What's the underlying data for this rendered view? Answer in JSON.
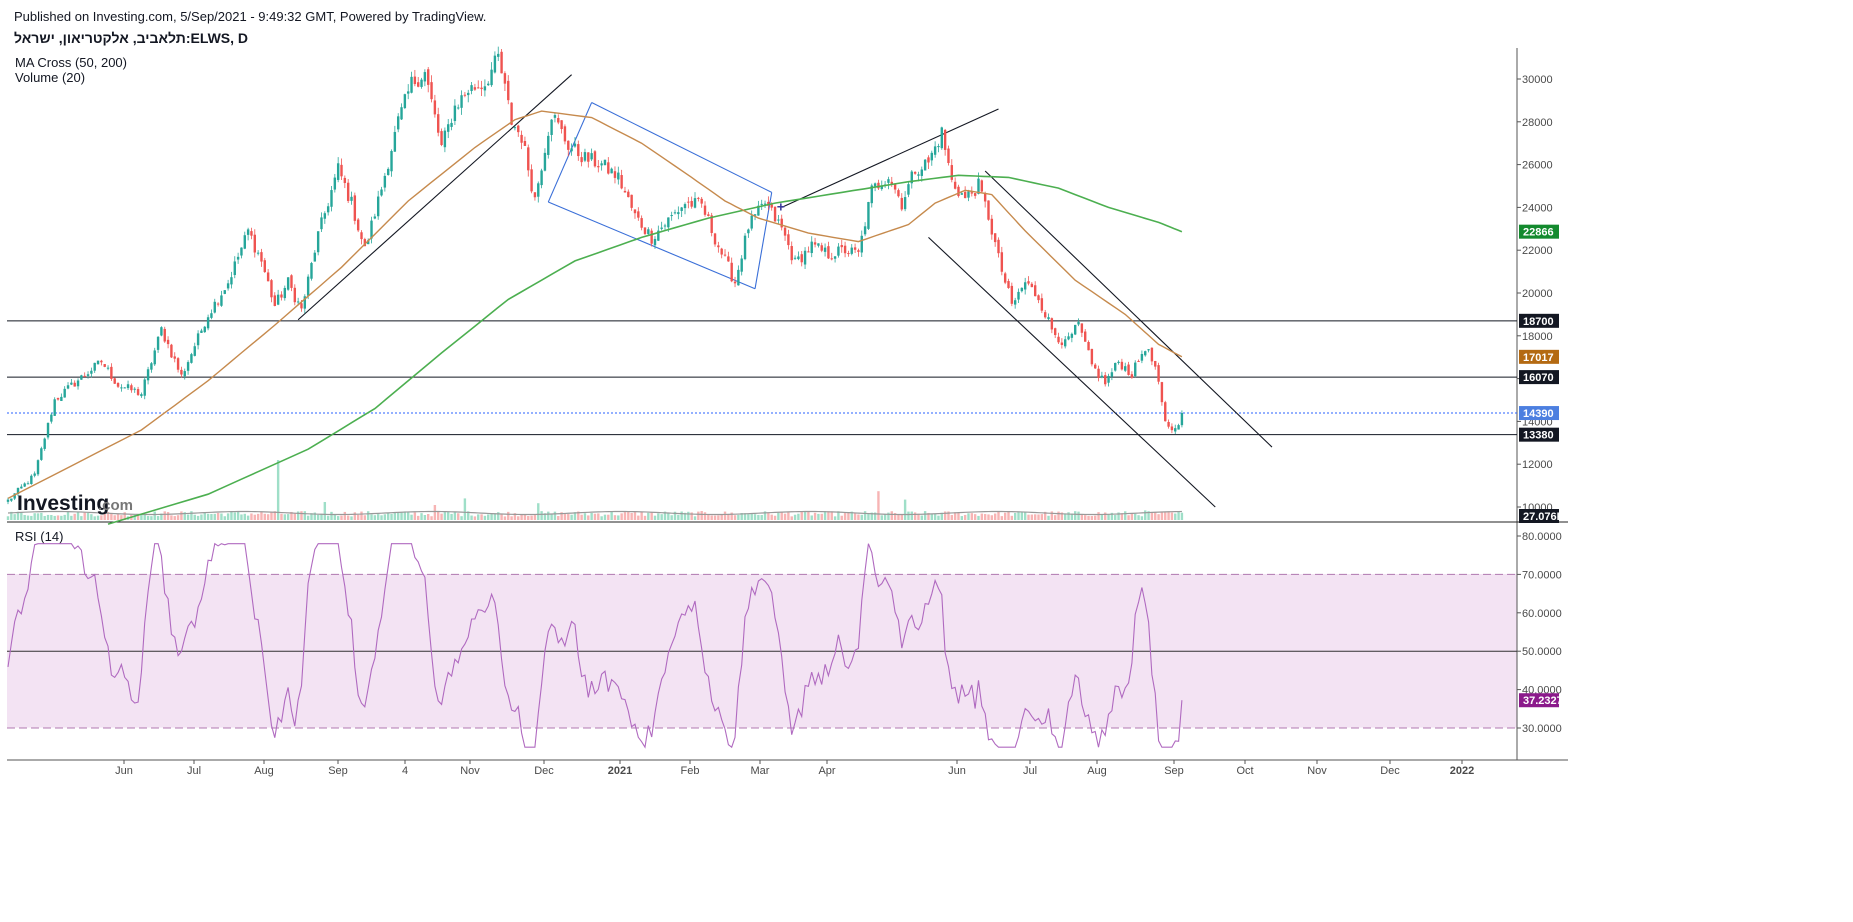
{
  "header": {
    "published": "Published on Investing.com, 5/Sep/2021 - 9:49:32 GMT, Powered by TradingView.",
    "symbol": "תלאביב, אלקטריאון, ישראל:ELWS, D"
  },
  "indicators": {
    "ma_cross": "MA Cross (50, 200)",
    "volume": "Volume (20)",
    "rsi": "RSI (14)"
  },
  "logo": {
    "brand": "Investing",
    "suffix": ".com"
  },
  "colors": {
    "up": "#26a69a",
    "down": "#ef5350",
    "ma50": "#c68a4d",
    "ma200": "#4caf50",
    "rsi": "#b06ac0",
    "rsi_band": "#f3e3f3",
    "price_line": "#2962ff",
    "channel_blue": "#3a6fd8"
  },
  "chart_data": [
    {
      "type": "candlestick",
      "title": "תלאביב, אלקטריאון, ישראל:ELWS, D",
      "x_tick_labels": [
        "Jun",
        "Jul",
        "Aug",
        "Sep",
        "4",
        "Nov",
        "Dec",
        "2021",
        "Feb",
        "Mar",
        "Apr",
        "Jun",
        "Jul",
        "Aug",
        "Sep",
        "Oct",
        "Nov",
        "Dec",
        "2022"
      ],
      "y_tick_labels": [
        "10000",
        "12000",
        "14000",
        "16000",
        "18000",
        "20000",
        "22000",
        "24000",
        "26000",
        "28000",
        "30000"
      ],
      "ylim": [
        9300,
        31400
      ],
      "grid": false,
      "anchors": [
        {
          "i": 0,
          "p": 10300
        },
        {
          "i": 8,
          "p": 11500
        },
        {
          "i": 14,
          "p": 15000
        },
        {
          "i": 20,
          "p": 15800
        },
        {
          "i": 28,
          "p": 16800
        },
        {
          "i": 33,
          "p": 15700
        },
        {
          "i": 40,
          "p": 15300
        },
        {
          "i": 46,
          "p": 18300
        },
        {
          "i": 52,
          "p": 16100
        },
        {
          "i": 60,
          "p": 19000
        },
        {
          "i": 66,
          "p": 20500
        },
        {
          "i": 72,
          "p": 22900
        },
        {
          "i": 76,
          "p": 21500
        },
        {
          "i": 80,
          "p": 19400
        },
        {
          "i": 84,
          "p": 20500
        },
        {
          "i": 88,
          "p": 19200
        },
        {
          "i": 93,
          "p": 22700
        },
        {
          "i": 99,
          "p": 25800
        },
        {
          "i": 103,
          "p": 24200
        },
        {
          "i": 107,
          "p": 22000
        },
        {
          "i": 112,
          "p": 24900
        },
        {
          "i": 117,
          "p": 28000
        },
        {
          "i": 121,
          "p": 29800
        },
        {
          "i": 125,
          "p": 30300
        },
        {
          "i": 130,
          "p": 26800
        },
        {
          "i": 134,
          "p": 28700
        },
        {
          "i": 138,
          "p": 29500
        },
        {
          "i": 143,
          "p": 29800
        },
        {
          "i": 147,
          "p": 31000
        },
        {
          "i": 151,
          "p": 28000
        },
        {
          "i": 154,
          "p": 27300
        },
        {
          "i": 158,
          "p": 24400
        },
        {
          "i": 163,
          "p": 28400
        },
        {
          "i": 168,
          "p": 26900
        },
        {
          "i": 173,
          "p": 26300
        },
        {
          "i": 178,
          "p": 26000
        },
        {
          "i": 183,
          "p": 25400
        },
        {
          "i": 188,
          "p": 23600
        },
        {
          "i": 193,
          "p": 22600
        },
        {
          "i": 198,
          "p": 23400
        },
        {
          "i": 203,
          "p": 24200
        },
        {
          "i": 208,
          "p": 24100
        },
        {
          "i": 213,
          "p": 22200
        },
        {
          "i": 218,
          "p": 20500
        },
        {
          "i": 222,
          "p": 23100
        },
        {
          "i": 227,
          "p": 24200
        },
        {
          "i": 232,
          "p": 23000
        },
        {
          "i": 236,
          "p": 21400
        },
        {
          "i": 241,
          "p": 22200
        },
        {
          "i": 246,
          "p": 21800
        },
        {
          "i": 251,
          "p": 22000
        },
        {
          "i": 255,
          "p": 21800
        },
        {
          "i": 259,
          "p": 24800
        },
        {
          "i": 264,
          "p": 25500
        },
        {
          "i": 268,
          "p": 24200
        },
        {
          "i": 272,
          "p": 25800
        },
        {
          "i": 276,
          "p": 26100
        },
        {
          "i": 280,
          "p": 27500
        },
        {
          "i": 283,
          "p": 25200
        },
        {
          "i": 287,
          "p": 24400
        },
        {
          "i": 291,
          "p": 25000
        },
        {
          "i": 294,
          "p": 23600
        },
        {
          "i": 297,
          "p": 21600
        },
        {
          "i": 301,
          "p": 19400
        },
        {
          "i": 305,
          "p": 20500
        },
        {
          "i": 309,
          "p": 19800
        },
        {
          "i": 313,
          "p": 18300
        },
        {
          "i": 317,
          "p": 17600
        },
        {
          "i": 321,
          "p": 18500
        },
        {
          "i": 325,
          "p": 16600
        },
        {
          "i": 329,
          "p": 15800
        },
        {
          "i": 333,
          "p": 16800
        },
        {
          "i": 337,
          "p": 16200
        },
        {
          "i": 341,
          "p": 17500
        },
        {
          "i": 344,
          "p": 16500
        },
        {
          "i": 347,
          "p": 13900
        },
        {
          "i": 350,
          "p": 13600
        },
        {
          "i": 352,
          "p": 14390
        }
      ],
      "ma50": [
        [
          0,
          10400
        ],
        [
          40,
          13600
        ],
        [
          60,
          15900
        ],
        [
          80,
          18500
        ],
        [
          100,
          21200
        ],
        [
          120,
          24300
        ],
        [
          140,
          26800
        ],
        [
          152,
          28100
        ],
        [
          160,
          28500
        ],
        [
          175,
          28200
        ],
        [
          190,
          27000
        ],
        [
          205,
          25400
        ],
        [
          215,
          24300
        ],
        [
          225,
          23500
        ],
        [
          240,
          22800
        ],
        [
          255,
          22400
        ],
        [
          270,
          23200
        ],
        [
          278,
          24200
        ],
        [
          287,
          24800
        ],
        [
          295,
          24600
        ],
        [
          305,
          22900
        ],
        [
          320,
          20600
        ],
        [
          335,
          19000
        ],
        [
          345,
          17600
        ],
        [
          352,
          17017
        ]
      ],
      "ma200": [
        [
          30,
          9200
        ],
        [
          60,
          10600
        ],
        [
          90,
          12700
        ],
        [
          110,
          14600
        ],
        [
          130,
          17200
        ],
        [
          150,
          19700
        ],
        [
          170,
          21500
        ],
        [
          190,
          22600
        ],
        [
          210,
          23500
        ],
        [
          230,
          24200
        ],
        [
          250,
          24700
        ],
        [
          270,
          25200
        ],
        [
          285,
          25500
        ],
        [
          300,
          25400
        ],
        [
          315,
          24900
        ],
        [
          330,
          24000
        ],
        [
          345,
          23300
        ],
        [
          352,
          22866
        ]
      ],
      "horizontal_levels": [
        18700,
        16070,
        13380
      ],
      "price_badges": [
        {
          "label": "22866",
          "value": 22866,
          "color": "#138a2e"
        },
        {
          "label": "18700",
          "value": 18700,
          "color": "#131722"
        },
        {
          "label": "17017",
          "value": 17017,
          "color": "#b46a12"
        },
        {
          "label": "16070",
          "value": 16070,
          "color": "#131722"
        },
        {
          "label": "14390",
          "value": 14390,
          "color": "#4c7fe0"
        },
        {
          "label": "13380",
          "value": 13380,
          "color": "#131722"
        }
      ],
      "current_price": 14390,
      "volume_label": "27.076K",
      "volume_spikes": [
        [
          81,
          10
        ],
        [
          95,
          3
        ],
        [
          128,
          2.5
        ],
        [
          159,
          2.8
        ],
        [
          137,
          3.6
        ],
        [
          261,
          4.8
        ],
        [
          269,
          3.4
        ],
        [
          341,
          1.6
        ]
      ]
    },
    {
      "type": "line",
      "title": "RSI (14)",
      "y_tick_labels": [
        "30.0000",
        "40.0000",
        "50.0000",
        "60.0000",
        "70.0000",
        "80.0000"
      ],
      "ylim": [
        23,
        82
      ],
      "bands": {
        "upper": 70,
        "middle": 50,
        "lower": 30
      },
      "current_label": "37.2327",
      "current_value": 37.2327
    }
  ]
}
